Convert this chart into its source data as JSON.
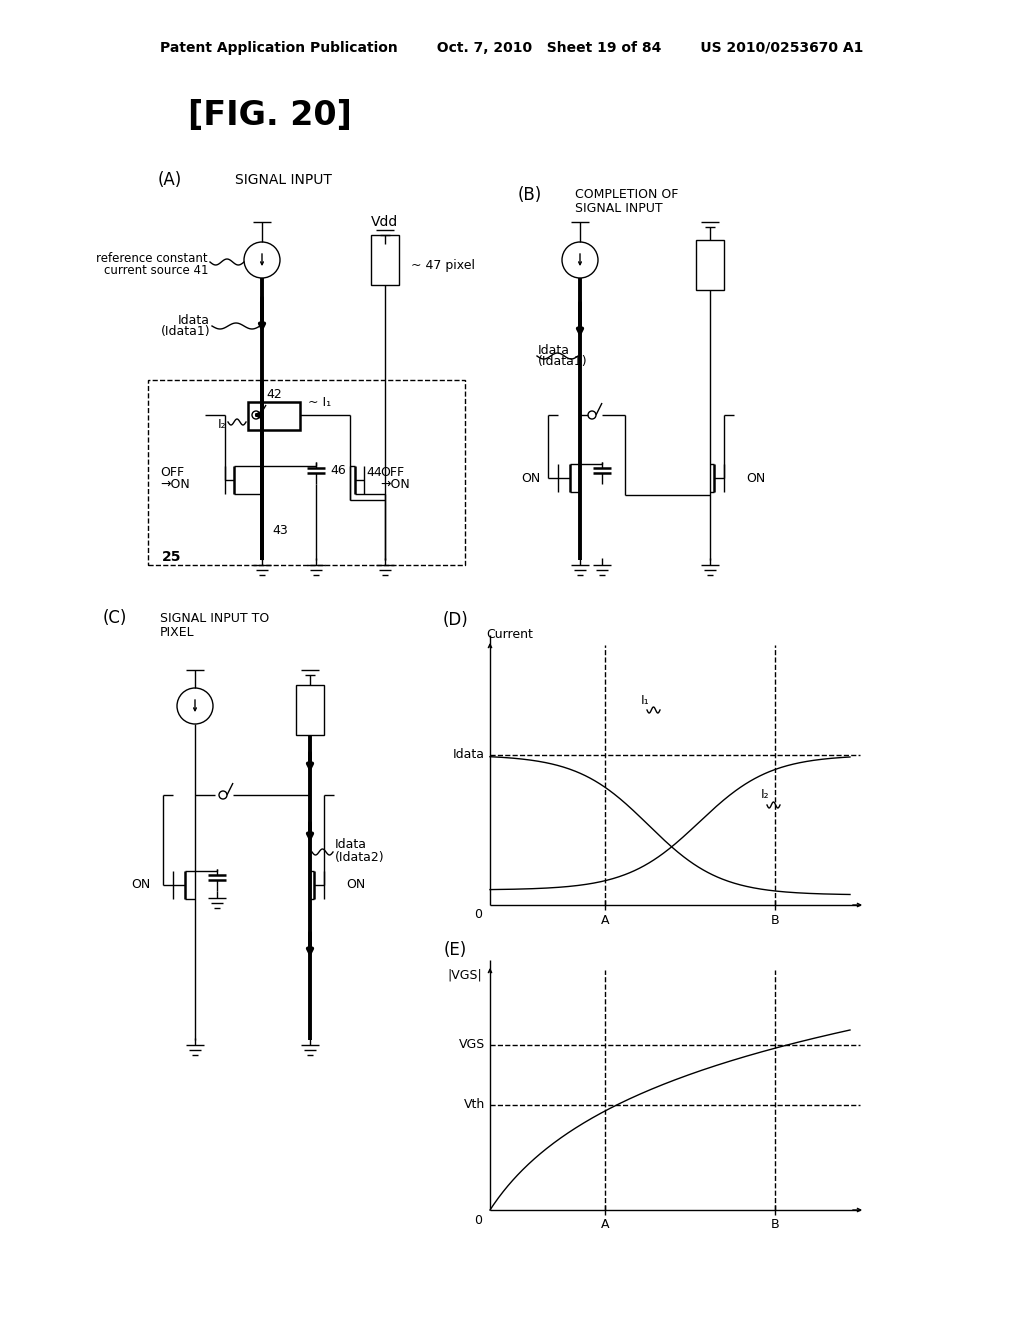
{
  "title": "[FIG. 20]",
  "header": "Patent Application Publication        Oct. 7, 2010   Sheet 19 of 84        US 2010/0253670 A1",
  "bg_color": "#ffffff",
  "black": "#000000"
}
